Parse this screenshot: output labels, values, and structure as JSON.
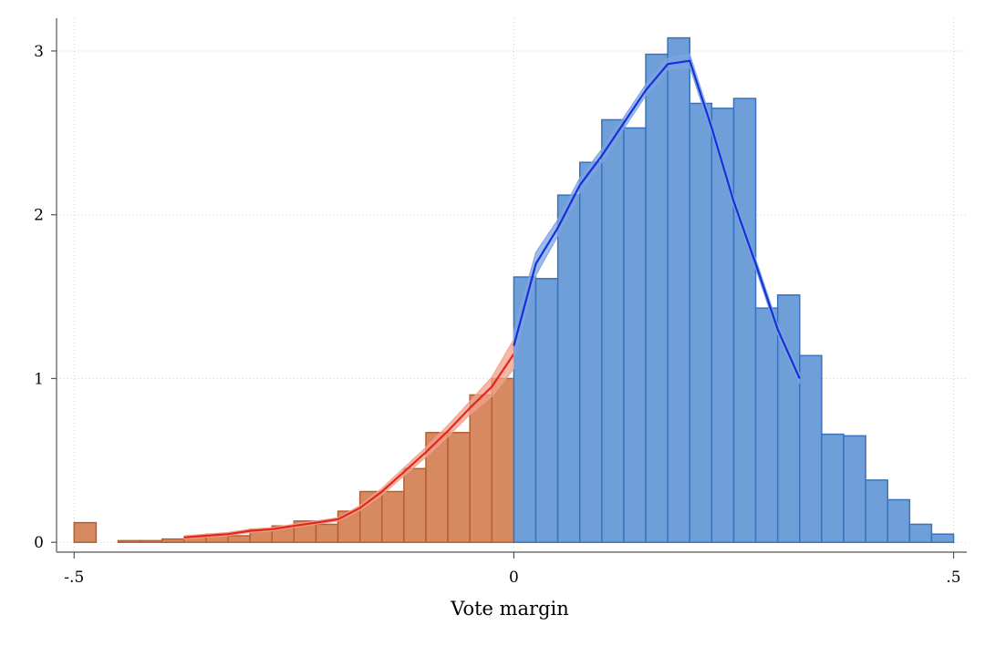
{
  "chart_data": {
    "type": "bar",
    "xlabel": "Vote margin",
    "ylabel": "",
    "title": "",
    "xlim": [
      -0.52,
      0.515
    ],
    "ylim": [
      -0.06,
      3.2
    ],
    "xticks": [
      {
        "value": -0.5,
        "label": "-.5"
      },
      {
        "value": 0,
        "label": "0"
      },
      {
        "value": 0.5,
        "label": ".5"
      }
    ],
    "yticks": [
      {
        "value": 0,
        "label": "0"
      },
      {
        "value": 1,
        "label": "1"
      },
      {
        "value": 2,
        "label": "2"
      },
      {
        "value": 3,
        "label": "3"
      }
    ],
    "grid": true,
    "bin_width": 0.025,
    "colors": {
      "left_bar_fill": "#d78a62",
      "left_bar_stroke": "#b5602f",
      "right_bar_fill": "#6f9fd8",
      "right_bar_stroke": "#3b72bf",
      "left_fit_line": "#e3261b",
      "left_fit_band": "#f2a08a",
      "right_fit_line": "#1232d9",
      "right_fit_band": "#7ea3e0"
    },
    "series": [
      {
        "side": "left",
        "bins_left_edge": [
          -0.5,
          -0.45,
          -0.425,
          -0.4,
          -0.375,
          -0.35,
          -0.325,
          -0.3,
          -0.275,
          -0.25,
          -0.225,
          -0.2,
          -0.175,
          -0.15,
          -0.125,
          -0.1,
          -0.075,
          -0.05,
          -0.025
        ],
        "values": [
          0.12,
          0.01,
          0.01,
          0.02,
          0.03,
          0.05,
          0.04,
          0.08,
          0.1,
          0.13,
          0.11,
          0.19,
          0.31,
          0.31,
          0.45,
          0.67,
          0.67,
          0.9,
          1.0
        ],
        "fit_x": [
          -0.375,
          -0.35,
          -0.325,
          -0.3,
          -0.275,
          -0.25,
          -0.225,
          -0.2,
          -0.175,
          -0.15,
          -0.125,
          -0.1,
          -0.075,
          -0.05,
          -0.025,
          0.0
        ],
        "fit_y": [
          0.03,
          0.04,
          0.05,
          0.07,
          0.08,
          0.1,
          0.12,
          0.14,
          0.21,
          0.31,
          0.43,
          0.55,
          0.68,
          0.82,
          0.95,
          1.15
        ],
        "fit_band": [
          0.01,
          0.01,
          0.01,
          0.01,
          0.01,
          0.01,
          0.01,
          0.01,
          0.015,
          0.02,
          0.025,
          0.03,
          0.035,
          0.04,
          0.06,
          0.09
        ]
      },
      {
        "side": "right",
        "bins_left_edge": [
          0.0,
          0.025,
          0.05,
          0.075,
          0.1,
          0.125,
          0.15,
          0.175,
          0.2,
          0.225,
          0.25,
          0.275,
          0.3,
          0.325,
          0.35,
          0.375,
          0.4,
          0.425,
          0.45,
          0.475
        ],
        "values": [
          1.62,
          1.61,
          2.12,
          2.32,
          2.58,
          2.53,
          2.98,
          3.08,
          2.68,
          2.65,
          2.71,
          1.43,
          1.51,
          1.14,
          0.66,
          0.65,
          0.38,
          0.26,
          0.11,
          0.05
        ],
        "fit_x": [
          0.0,
          0.025,
          0.05,
          0.075,
          0.1,
          0.125,
          0.15,
          0.175,
          0.2,
          0.225,
          0.25,
          0.275,
          0.3,
          0.325
        ],
        "fit_y": [
          1.2,
          1.7,
          1.92,
          2.18,
          2.36,
          2.56,
          2.76,
          2.92,
          2.94,
          2.53,
          2.08,
          1.7,
          1.3,
          1.0
        ],
        "fit_band": [
          0.09,
          0.07,
          0.05,
          0.045,
          0.04,
          0.035,
          0.035,
          0.035,
          0.04,
          0.035,
          0.03,
          0.03,
          0.03,
          0.03
        ]
      }
    ]
  }
}
